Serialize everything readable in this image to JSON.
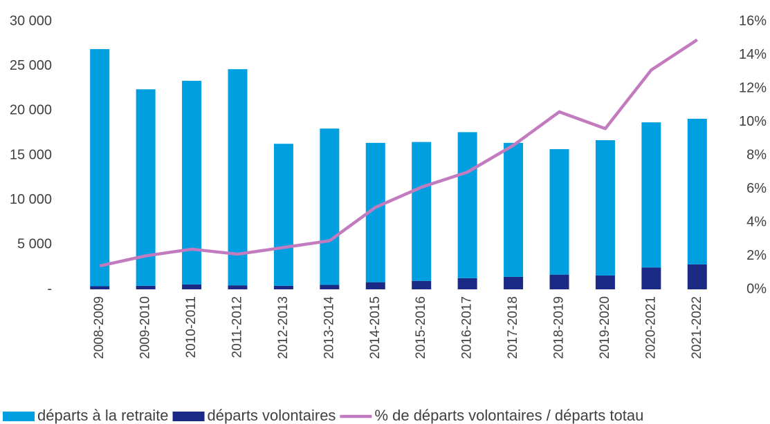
{
  "chart_data": {
    "type": "bar",
    "categories": [
      "2008-2009",
      "2009-2010",
      "2010-2011",
      "2011-2012",
      "2012-2013",
      "2013-2014",
      "2014-2015",
      "2015-2016",
      "2016-2017",
      "2017-2018",
      "2018-2019",
      "2019-2020",
      "2020-2021",
      "2021-2022"
    ],
    "series": [
      {
        "name": "départs à la retraite",
        "color": "#00a0e0",
        "values": [
          26550,
          22000,
          22800,
          24200,
          15900,
          17500,
          15600,
          15550,
          16350,
          15000,
          14050,
          15150,
          16250,
          16300
        ]
      },
      {
        "name": "départs volontaires",
        "color": "#1b2a84",
        "values": [
          350,
          400,
          550,
          450,
          400,
          500,
          800,
          950,
          1250,
          1400,
          1650,
          1550,
          2450,
          2800
        ]
      },
      {
        "name": "% de départs volontaires / départs totau",
        "color": "#c27bbf",
        "axis": "y2",
        "type": "line",
        "values": [
          1.4,
          2.0,
          2.4,
          2.1,
          2.5,
          2.9,
          4.9,
          6.1,
          7.0,
          8.6,
          10.6,
          9.6,
          13.1,
          14.9
        ]
      }
    ],
    "stacked": true,
    "ylim": [
      0,
      30000
    ],
    "yticks": [
      {
        "value": 0,
        "label": "-"
      },
      {
        "value": 5000,
        "label": "5 000"
      },
      {
        "value": 10000,
        "label": "10 000"
      },
      {
        "value": 15000,
        "label": "15 000"
      },
      {
        "value": 20000,
        "label": "20 000"
      },
      {
        "value": 25000,
        "label": "25 000"
      },
      {
        "value": 30000,
        "label": "30 000"
      }
    ],
    "y2lim": [
      0,
      16
    ],
    "y2ticks": [
      {
        "value": 0,
        "label": "0%"
      },
      {
        "value": 2,
        "label": "2%"
      },
      {
        "value": 4,
        "label": "4%"
      },
      {
        "value": 6,
        "label": "6%"
      },
      {
        "value": 8,
        "label": "8%"
      },
      {
        "value": 10,
        "label": "10%"
      },
      {
        "value": 12,
        "label": "12%"
      },
      {
        "value": 14,
        "label": "14%"
      },
      {
        "value": 16,
        "label": "16%"
      }
    ],
    "grid": false,
    "legend": "bottom"
  }
}
